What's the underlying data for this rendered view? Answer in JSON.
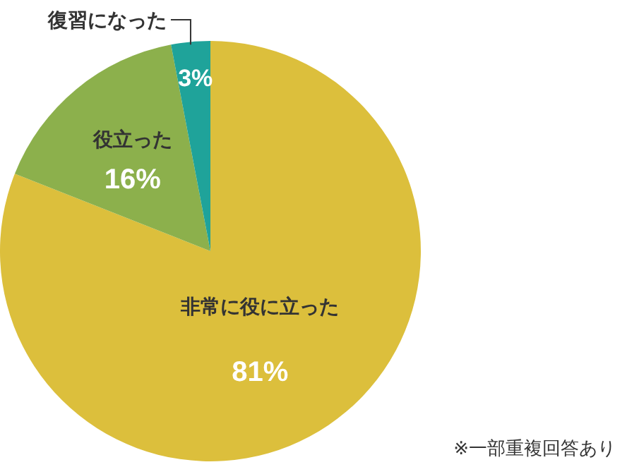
{
  "chart_data": {
    "type": "pie",
    "categories": [
      "非常に役に立った",
      "役立った",
      "復習になった"
    ],
    "values": [
      81,
      16,
      3
    ],
    "colors": [
      "#dcbf3c",
      "#8cb04c",
      "#1fa39a"
    ],
    "value_labels": [
      "81%",
      "16%",
      "3%"
    ],
    "annotations": [
      "※一部重複回答あり"
    ]
  }
}
